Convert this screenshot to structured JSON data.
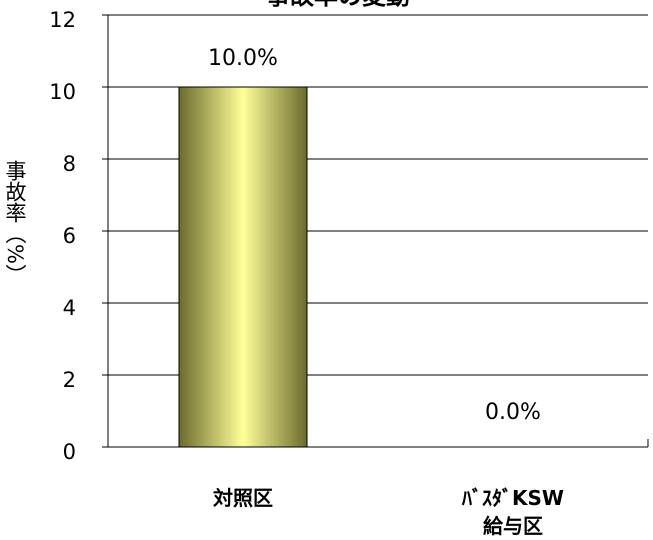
{
  "chart_data": {
    "type": "bar",
    "title": "事故率の変動",
    "categories": [
      "対照区",
      "ﾊﾞｽﾀﾞKSW\n給与区"
    ],
    "values": [
      10.0,
      0.0
    ],
    "data_labels": [
      "10.0%",
      "0.0%"
    ],
    "ylabel": "事故率（%）",
    "xlabel": "",
    "ylim": [
      0,
      12
    ],
    "yticks": [
      0,
      2,
      4,
      6,
      8,
      10,
      12
    ],
    "grid": true,
    "legend": "none"
  },
  "colors": {
    "bar_center": "#ffff99",
    "bar_edge": "#6b6b2e",
    "axis": "#000000"
  }
}
